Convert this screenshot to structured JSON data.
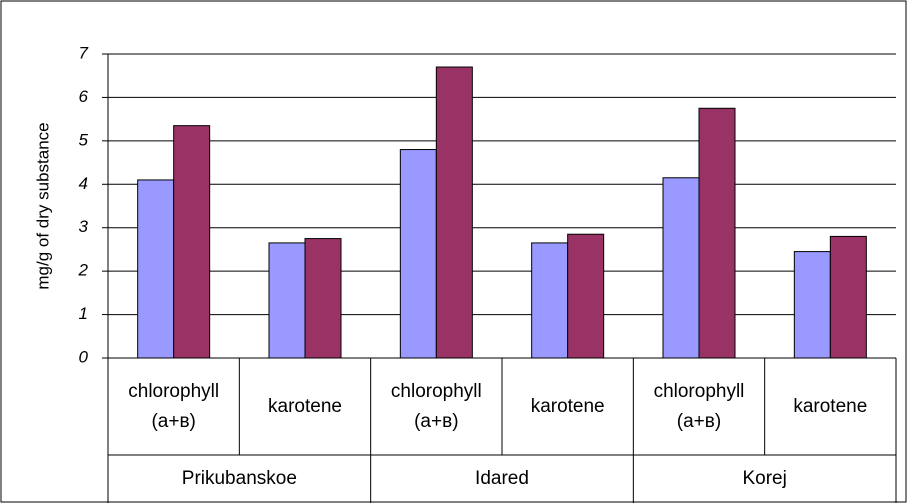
{
  "chart_data": {
    "type": "bar",
    "ylabel": "mg/g of dry substance",
    "categories": [
      "chlorophyll (a+в)",
      "karotene",
      "chlorophyll (a+в)",
      "karotene",
      "chlorophyll (a+в)",
      "karotene"
    ],
    "groups": [
      "Prikubanskoe",
      "Idared",
      "Korej"
    ],
    "series": [
      {
        "color": "#9999ff",
        "values": [
          4.1,
          2.65,
          4.8,
          2.65,
          4.15,
          2.45
        ]
      },
      {
        "color": "#993366",
        "values": [
          5.35,
          2.75,
          6.7,
          2.85,
          5.75,
          2.8
        ]
      }
    ],
    "ylim": [
      0,
      7
    ],
    "yticks": [
      0,
      1,
      2,
      3,
      4,
      5,
      6,
      7
    ],
    "grid": true
  }
}
